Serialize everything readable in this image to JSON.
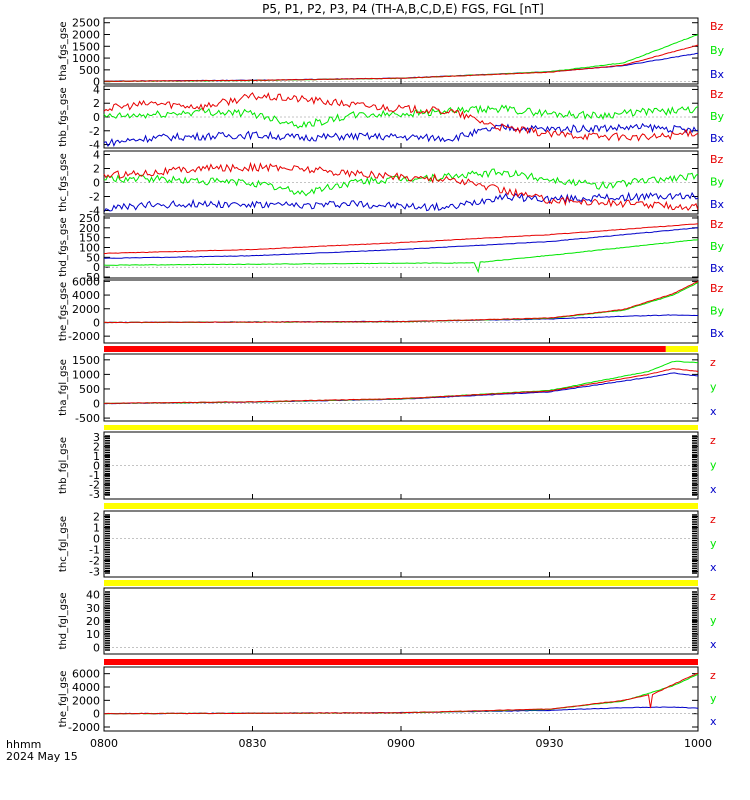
{
  "title": "P5, P1, P2, P3, P4 (TH-A,B,C,D,E) FGS, FGL [nT]",
  "footer": {
    "time_label": "hhmm",
    "date_label": "2024 May 15"
  },
  "colors": {
    "x": "#0000c8",
    "y": "#00e600",
    "z": "#e60000",
    "bar_red": "#ff0000",
    "bar_yellow": "#ffff00",
    "axis": "#000000"
  },
  "chart_data": {
    "type": "line",
    "xlabel": "",
    "x_ticks": [
      "0800",
      "0830",
      "0900",
      "0930",
      "1000"
    ],
    "xlim": [
      "08:00",
      "10:00"
    ],
    "panels": [
      {
        "ylabel": "tha_fgs_gse",
        "ylim": [
          -100,
          2700
        ],
        "yticks": [
          "0",
          "500",
          "1000",
          "1500",
          "2000",
          "2500"
        ],
        "legend": [
          "Bz",
          "By",
          "Bx"
        ],
        "series": [
          {
            "name": "Bx",
            "color": "x",
            "t": [
              0,
              30,
              60,
              90,
              105,
              120
            ],
            "v": [
              20,
              60,
              150,
              420,
              680,
              1200
            ]
          },
          {
            "name": "By",
            "color": "y",
            "t": [
              0,
              30,
              60,
              90,
              105,
              120
            ],
            "v": [
              10,
              50,
              140,
              420,
              800,
              2000
            ]
          },
          {
            "name": "Bz",
            "color": "z",
            "t": [
              0,
              30,
              60,
              90,
              105,
              120
            ],
            "v": [
              15,
              55,
              145,
              400,
              700,
              1550
            ]
          }
        ]
      },
      {
        "ylabel": "thb_fgs_gse",
        "ylim": [
          -4.5,
          4.5
        ],
        "yticks": [
          "-4",
          "-2",
          "0",
          "2",
          "4"
        ],
        "legend": [
          "Bz",
          "By",
          "Bx"
        ],
        "series": [
          {
            "name": "Bx",
            "color": "x",
            "t": [
              0,
              10,
              20,
              30,
              40,
              50,
              60,
              70,
              80,
              90,
              100,
              110,
              120
            ],
            "v": [
              -3.8,
              -3.0,
              -2.8,
              -2.6,
              -3.0,
              -2.8,
              -2.9,
              -3.1,
              -1.5,
              -1.8,
              -1.6,
              -1.5,
              -2.0
            ]
          },
          {
            "name": "By",
            "color": "y",
            "t": [
              0,
              10,
              20,
              30,
              40,
              50,
              60,
              70,
              80,
              90,
              100,
              110,
              120
            ],
            "v": [
              0.0,
              0.3,
              0.8,
              0.5,
              -1.2,
              0.2,
              0.5,
              0.8,
              1.2,
              0.5,
              0.2,
              0.8,
              1.0
            ]
          },
          {
            "name": "Bz",
            "color": "z",
            "t": [
              0,
              10,
              20,
              30,
              40,
              50,
              60,
              70,
              80,
              90,
              100,
              110,
              120
            ],
            "v": [
              1.2,
              2.0,
              1.5,
              3.0,
              2.6,
              1.8,
              1.2,
              0.8,
              -1.5,
              -2.5,
              -2.8,
              -3.0,
              -2.2
            ]
          }
        ]
      },
      {
        "ylabel": "thc_fgs_gse",
        "ylim": [
          -4.5,
          4.5
        ],
        "yticks": [
          "-4",
          "-2",
          "0",
          "2",
          "4"
        ],
        "legend": [
          "Bz",
          "By",
          "Bx"
        ],
        "series": [
          {
            "name": "Bx",
            "color": "x",
            "t": [
              0,
              10,
              20,
              30,
              40,
              50,
              60,
              70,
              80,
              90,
              100,
              110,
              120
            ],
            "v": [
              -3.8,
              -3.2,
              -3.0,
              -3.2,
              -3.3,
              -3.0,
              -3.4,
              -3.6,
              -2.0,
              -2.4,
              -2.2,
              -2.0,
              -2.0
            ]
          },
          {
            "name": "By",
            "color": "y",
            "t": [
              0,
              10,
              20,
              30,
              40,
              50,
              60,
              70,
              80,
              90,
              100,
              110,
              120
            ],
            "v": [
              0.5,
              0.5,
              0.2,
              0.0,
              -1.5,
              0.0,
              0.5,
              0.8,
              1.5,
              0.5,
              -0.5,
              0.3,
              1.0
            ]
          },
          {
            "name": "Bz",
            "color": "z",
            "t": [
              0,
              10,
              20,
              30,
              40,
              50,
              60,
              70,
              80,
              90,
              100,
              110,
              120
            ],
            "v": [
              1.0,
              1.5,
              2.0,
              2.2,
              2.0,
              1.3,
              0.8,
              0.5,
              -1.0,
              -2.5,
              -2.8,
              -3.2,
              -3.5
            ]
          }
        ]
      },
      {
        "ylabel": "thd_fgs_gse",
        "ylim": [
          -55,
          260
        ],
        "yticks": [
          "-50",
          "0",
          "50",
          "100",
          "150",
          "200",
          "250"
        ],
        "legend": [
          "Bz",
          "By",
          "Bx"
        ],
        "series": [
          {
            "name": "Bx",
            "color": "x",
            "t": [
              0,
              30,
              60,
              90,
              120
            ],
            "v": [
              45,
              58,
              90,
              130,
              200
            ]
          },
          {
            "name": "By",
            "color": "y",
            "t": [
              0,
              30,
              60,
              75,
              75.5,
              76,
              90,
              120
            ],
            "v": [
              10,
              15,
              20,
              22,
              -35,
              25,
              60,
              140
            ]
          },
          {
            "name": "Bz",
            "color": "z",
            "t": [
              0,
              30,
              60,
              90,
              120
            ],
            "v": [
              70,
              90,
              125,
              165,
              220
            ]
          }
        ]
      },
      {
        "ylabel": "the_fgs_gse",
        "ylim": [
          -3000,
          6200
        ],
        "yticks": [
          "-2000",
          "0",
          "2000",
          "4000",
          "6000"
        ],
        "legend": [
          "Bz",
          "By",
          "Bx"
        ],
        "series": [
          {
            "name": "Bx",
            "color": "x",
            "t": [
              0,
              60,
              90,
              105,
              115,
              120
            ],
            "v": [
              0,
              150,
              500,
              900,
              1100,
              1000
            ]
          },
          {
            "name": "By",
            "color": "y",
            "t": [
              0,
              60,
              90,
              105,
              115,
              120
            ],
            "v": [
              0,
              100,
              600,
              1800,
              4000,
              5800
            ]
          },
          {
            "name": "Bz",
            "color": "z",
            "t": [
              0,
              60,
              90,
              105,
              115,
              120
            ],
            "v": [
              0,
              120,
              650,
              1900,
              4200,
              6000
            ]
          }
        ]
      },
      {
        "ylabel": "tha_fgl_gse",
        "ylim": [
          -600,
          1700
        ],
        "yticks": [
          "-500",
          "0",
          "500",
          "1000",
          "1500"
        ],
        "legend": [
          "z",
          "y",
          "x"
        ],
        "series": [
          {
            "name": "x",
            "color": "x",
            "t": [
              0,
              30,
              60,
              90,
              110,
              115,
              120
            ],
            "v": [
              0,
              50,
              150,
              400,
              900,
              1050,
              950
            ]
          },
          {
            "name": "y",
            "color": "y",
            "t": [
              0,
              30,
              60,
              90,
              110,
              115,
              120
            ],
            "v": [
              0,
              55,
              160,
              450,
              1100,
              1450,
              1400
            ]
          },
          {
            "name": "z",
            "color": "z",
            "t": [
              0,
              30,
              60,
              90,
              110,
              115,
              120
            ],
            "v": [
              5,
              60,
              170,
              430,
              1000,
              1200,
              1100
            ]
          }
        ]
      },
      {
        "ylabel": "thb_fgl_gse",
        "ylim": [
          -3.5,
          3.5
        ],
        "yticks": [
          "-3",
          "-2",
          "-1",
          "0",
          "1",
          "2",
          "3"
        ],
        "legend": [
          "z",
          "y",
          "x"
        ],
        "series": []
      },
      {
        "ylabel": "thc_fgl_gse",
        "ylim": [
          -3.5,
          2.5
        ],
        "yticks": [
          "-3",
          "-2",
          "-1",
          "0",
          "1",
          "2"
        ],
        "legend": [
          "z",
          "y",
          "x"
        ],
        "series": []
      },
      {
        "ylabel": "thd_fgl_gse",
        "ylim": [
          -5,
          45
        ],
        "yticks": [
          "0",
          "10",
          "20",
          "30",
          "40"
        ],
        "legend": [
          "z",
          "y",
          "x"
        ],
        "series": []
      },
      {
        "ylabel": "the_fgl_gse",
        "ylim": [
          -2600,
          7000
        ],
        "yticks": [
          "-2000",
          "0",
          "2000",
          "4000",
          "6000"
        ],
        "legend": [
          "z",
          "y",
          "x"
        ],
        "series": [
          {
            "name": "x",
            "color": "x",
            "t": [
              0,
              60,
              90,
              105,
              115,
              120
            ],
            "v": [
              0,
              150,
              500,
              900,
              1000,
              800
            ]
          },
          {
            "name": "y",
            "color": "y",
            "t": [
              0,
              60,
              90,
              105,
              115,
              120
            ],
            "v": [
              0,
              120,
              650,
              1900,
              4200,
              5900
            ]
          },
          {
            "name": "z",
            "color": "z",
            "t": [
              0,
              60,
              90,
              105,
              110,
              110.3,
              110.6,
              115,
              120
            ],
            "v": [
              0,
              130,
              700,
              2000,
              2800,
              -200,
              2800,
              4400,
              6100
            ]
          }
        ]
      }
    ],
    "status_bars": [
      {
        "after_panel": 4,
        "segments": [
          {
            "from": 0,
            "to": 113.5,
            "color": "bar_red"
          },
          {
            "from": 113.5,
            "to": 120,
            "color": "bar_yellow"
          }
        ]
      },
      {
        "after_panel": 5,
        "segments": [
          {
            "from": 0,
            "to": 120,
            "color": "bar_yellow"
          }
        ]
      },
      {
        "after_panel": 6,
        "segments": [
          {
            "from": 0,
            "to": 120,
            "color": "bar_yellow"
          }
        ]
      },
      {
        "after_panel": 7,
        "segments": [
          {
            "from": 0,
            "to": 120,
            "color": "bar_yellow"
          }
        ]
      },
      {
        "after_panel": 8,
        "segments": [
          {
            "from": 0,
            "to": 120,
            "color": "bar_red"
          }
        ]
      }
    ]
  }
}
